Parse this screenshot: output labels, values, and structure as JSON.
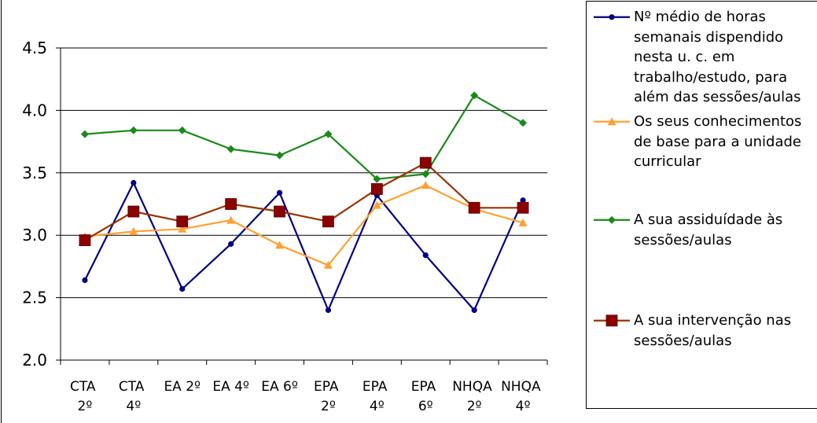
{
  "chart_data": {
    "type": "line",
    "categories": [
      "CTA 2º",
      "CTA 4º",
      "EA 2º",
      "EA 4º",
      "EA 6º",
      "EPA 2º",
      "EPA 4º",
      "EPA 6º",
      "NHQA 2º",
      "NHQA 4º"
    ],
    "ylim": [
      2.0,
      4.5
    ],
    "yticks": [
      "2.0",
      "2.5",
      "3.0",
      "3.5",
      "4.0",
      "4.5"
    ],
    "grid": true,
    "legend_position": "right",
    "series": [
      {
        "name": "Nº médio de horas semanais dispendido nesta u. c. em trabalho/estudo, para além das sessões/aulas",
        "color": "#000080",
        "marker": "circle",
        "values": [
          2.64,
          3.42,
          2.57,
          2.93,
          3.34,
          2.4,
          3.32,
          2.84,
          2.4,
          3.28
        ]
      },
      {
        "name": "Os seus conhecimentos de base para a unidade curricular",
        "color": "#FFA033",
        "marker": "triangle",
        "values": [
          2.99,
          3.03,
          3.05,
          3.12,
          2.92,
          2.76,
          3.24,
          3.4,
          3.21,
          3.1
        ]
      },
      {
        "name": "A sua assiduídade às sessões/aulas",
        "color": "#1A8A1A",
        "marker": "diamond",
        "values": [
          3.81,
          3.84,
          3.84,
          3.69,
          3.64,
          3.81,
          3.45,
          3.49,
          4.12,
          3.9
        ]
      },
      {
        "name": "A sua intervenção nas sessões/aulas",
        "color": "#993300",
        "marker_color": "#8B0000",
        "marker": "square",
        "values": [
          2.96,
          3.19,
          3.11,
          3.25,
          3.19,
          3.11,
          3.37,
          3.58,
          3.22,
          3.22
        ]
      }
    ]
  }
}
